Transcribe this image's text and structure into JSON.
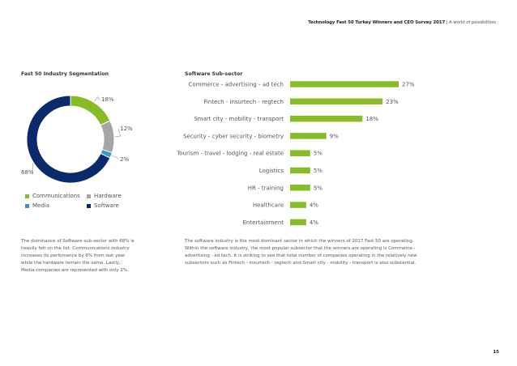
{
  "header": {
    "title_bold": "Technology Fast 50 Turkey Winners and CEO Survey 2017",
    "separator": " | ",
    "title_light": "A world of possibilities"
  },
  "left": {
    "title": "Fast 50 Industry Segmentation",
    "paragraph": "The dominance of Software sub-sector with 68% is heavily felt on the list. Communications industry increases its perfomance by 6% from last year while the hardware remain the same. Lastly, Media companies are represented with only 2%."
  },
  "right": {
    "title": "Software Sub-sector",
    "paragraph": "The software industry is the most dominant sector in which the winners of 2017 Fast 50 are operating. Within the software industry, the most popular subsector that the winners are operating is Commerce - advertising - ad tech.  It is striking to see that total number of  companies operating in the relatively new subsectors such as Fintech - insurtech - regtech  and Smart city - mobility - transport is also substantial."
  },
  "page_number": "15",
  "colors": {
    "communications": "#86bc25",
    "hardware": "#a5a5a5",
    "media": "#2e9ac9",
    "software": "#0b2a6b",
    "bar": "#86bc25"
  },
  "chart_data": [
    {
      "type": "pie",
      "title": "Fast 50 Industry Segmentation",
      "categories": [
        "Communications",
        "Hardware",
        "Media",
        "Software"
      ],
      "values": [
        18,
        12,
        2,
        68
      ],
      "labels": [
        "18%",
        "12%",
        "2%",
        "68%"
      ],
      "legend": "bottom"
    },
    {
      "type": "bar",
      "orientation": "horizontal",
      "title": "Software Sub-sector",
      "categories": [
        "Commerce - advertising - ad tech",
        "Fintech - insurtech - regtech",
        "Smart city - mobility - transport",
        "Security - cyber security - biometry",
        "Tourism - travel - lodging - real estate",
        "Logistics",
        "HR - training",
        "Healthcare",
        "Entertainment"
      ],
      "values": [
        27,
        23,
        18,
        9,
        5,
        5,
        5,
        4,
        4
      ],
      "labels": [
        "27%",
        "23%",
        "18%",
        "9%",
        "5%",
        "5%",
        "5%",
        "4%",
        "4%"
      ],
      "xlim": [
        0,
        27
      ]
    }
  ]
}
